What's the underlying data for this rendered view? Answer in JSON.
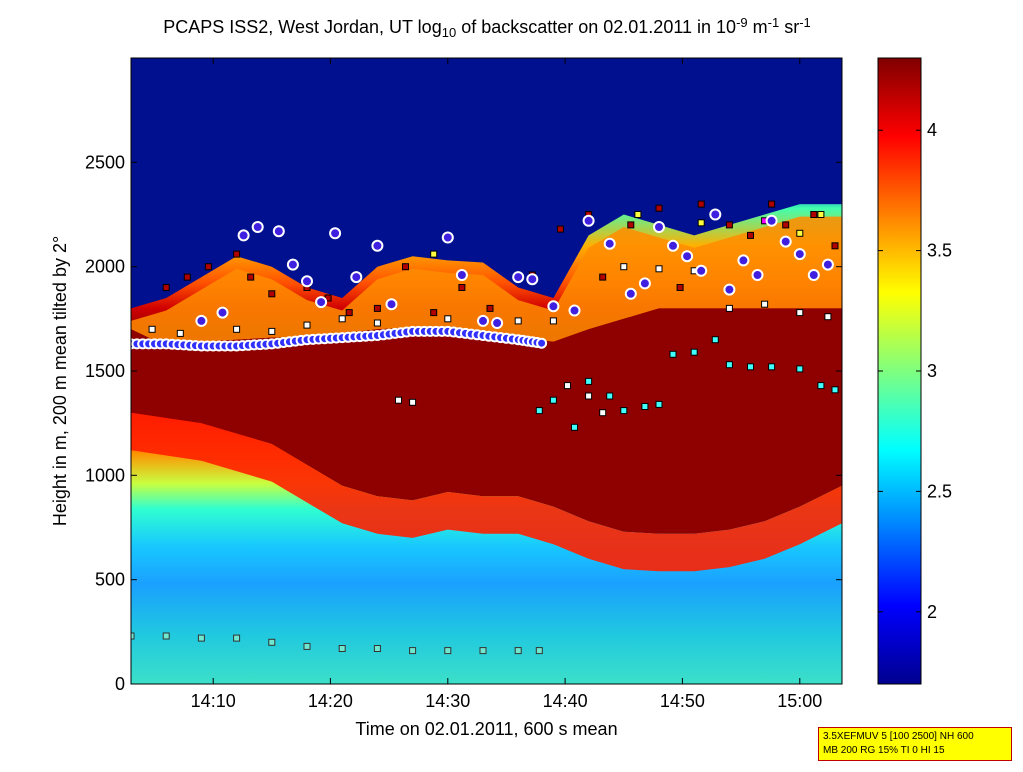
{
  "chart_data": {
    "type": "heatmap",
    "title_parts": [
      "PCAPS ISS2, West Jordan, UT log",
      "10",
      " of backscatter on 02.01.2011 in 10",
      "-9",
      " m",
      "-1",
      " sr",
      "-1"
    ],
    "xlabel": "Time on 02.01.2011, 600 s mean",
    "ylabel": "Height in m, 200 m mean tilted by 2°",
    "xlim": [
      14.05,
      15.06
    ],
    "ylim": [
      0,
      3000
    ],
    "xticks": [
      {
        "value": 14.1667,
        "label": "14:10"
      },
      {
        "value": 14.3333,
        "label": "14:20"
      },
      {
        "value": 14.5,
        "label": "14:30"
      },
      {
        "value": 14.6667,
        "label": "14:40"
      },
      {
        "value": 14.8333,
        "label": "14:50"
      },
      {
        "value": 15.0,
        "label": "15:00"
      }
    ],
    "yticks": [
      0,
      500,
      1000,
      1500,
      2000,
      2500
    ],
    "colorbar": {
      "colormap": "jet",
      "range": [
        1.7,
        4.3
      ],
      "ticks": [
        2,
        2.5,
        3,
        3.5,
        4
      ],
      "tick_labels": [
        "2",
        "2.5",
        "3",
        "3.5",
        "4"
      ]
    },
    "layers": {
      "aerosol_top_time": [
        14.05,
        14.1,
        14.15,
        14.2,
        14.25,
        14.3,
        14.35,
        14.4,
        14.45,
        14.5,
        14.55,
        14.6,
        14.65,
        14.7,
        14.75,
        14.8,
        14.85,
        14.9,
        14.95,
        15.0,
        15.06
      ],
      "aerosol_top_height": [
        1800,
        1850,
        1950,
        2050,
        2000,
        1900,
        1850,
        2000,
        2050,
        2030,
        2020,
        1900,
        1850,
        2150,
        2250,
        2200,
        2150,
        2200,
        2250,
        2300,
        2300
      ],
      "dense_layer_top_height": [
        1700,
        1620,
        1640,
        1650,
        1660,
        1660,
        1680,
        1700,
        1710,
        1700,
        1680,
        1660,
        1640,
        1700,
        1750,
        1800,
        1800,
        1800,
        1800,
        1800,
        1800
      ],
      "dense_layer_bottom_time": [
        14.05,
        14.15,
        14.25,
        14.3,
        14.35,
        14.4,
        14.45,
        14.5,
        14.55,
        14.6,
        14.65,
        14.7,
        14.75,
        14.8,
        14.85,
        14.9,
        14.95,
        15.0,
        15.06
      ],
      "dense_layer_bottom_height": [
        1300,
        1250,
        1150,
        1050,
        950,
        900,
        880,
        920,
        900,
        900,
        850,
        780,
        730,
        720,
        720,
        740,
        780,
        850,
        950
      ]
    },
    "markers": {
      "primary_layer_circles": [
        [
          14.05,
          1630
        ],
        [
          14.1,
          1630
        ],
        [
          14.15,
          1620
        ],
        [
          14.2,
          1620
        ],
        [
          14.25,
          1630
        ],
        [
          14.3,
          1650
        ],
        [
          14.35,
          1660
        ],
        [
          14.4,
          1670
        ],
        [
          14.45,
          1690
        ],
        [
          14.5,
          1690
        ],
        [
          14.55,
          1670
        ],
        [
          14.6,
          1650
        ],
        [
          14.64,
          1630
        ]
      ],
      "upper_circles": [
        [
          14.15,
          1740
        ],
        [
          14.18,
          1780
        ],
        [
          14.21,
          2150
        ],
        [
          14.23,
          2190
        ],
        [
          14.26,
          2170
        ],
        [
          14.28,
          2010
        ],
        [
          14.3,
          1930
        ],
        [
          14.32,
          1830
        ],
        [
          14.34,
          2160
        ],
        [
          14.37,
          1950
        ],
        [
          14.4,
          2100
        ],
        [
          14.42,
          1820
        ],
        [
          14.5,
          2140
        ],
        [
          14.52,
          1960
        ],
        [
          14.55,
          1740
        ],
        [
          14.57,
          1730
        ],
        [
          14.6,
          1950
        ],
        [
          14.62,
          1940
        ],
        [
          14.65,
          1810
        ],
        [
          14.68,
          1790
        ],
        [
          14.7,
          2220
        ],
        [
          14.73,
          2110
        ],
        [
          14.76,
          1870
        ],
        [
          14.78,
          1920
        ],
        [
          14.8,
          2190
        ],
        [
          14.82,
          2100
        ],
        [
          14.84,
          2050
        ],
        [
          14.86,
          1980
        ],
        [
          14.88,
          2250
        ],
        [
          14.9,
          1890
        ],
        [
          14.92,
          2030
        ],
        [
          14.94,
          1960
        ],
        [
          14.96,
          2220
        ],
        [
          14.98,
          2120
        ],
        [
          15.0,
          2060
        ],
        [
          15.02,
          1960
        ],
        [
          15.04,
          2010
        ]
      ],
      "white_squares": [
        [
          14.08,
          1700
        ],
        [
          14.12,
          1680
        ],
        [
          14.2,
          1700
        ],
        [
          14.25,
          1690
        ],
        [
          14.3,
          1720
        ],
        [
          14.35,
          1750
        ],
        [
          14.4,
          1730
        ],
        [
          14.43,
          1360
        ],
        [
          14.45,
          1350
        ],
        [
          14.5,
          1750
        ],
        [
          14.55,
          1740
        ],
        [
          14.6,
          1740
        ],
        [
          14.65,
          1740
        ],
        [
          14.67,
          1430
        ],
        [
          14.7,
          1380
        ],
        [
          14.72,
          1300
        ],
        [
          14.75,
          2000
        ],
        [
          14.8,
          1990
        ],
        [
          14.85,
          1980
        ],
        [
          14.9,
          1800
        ],
        [
          14.95,
          1820
        ],
        [
          15.0,
          1780
        ],
        [
          15.04,
          1760
        ]
      ],
      "cyan_squares": [
        [
          14.63,
          1310
        ],
        [
          14.65,
          1360
        ],
        [
          14.68,
          1230
        ],
        [
          14.7,
          1450
        ],
        [
          14.73,
          1380
        ],
        [
          14.75,
          1310
        ],
        [
          14.78,
          1330
        ],
        [
          14.8,
          1340
        ],
        [
          14.82,
          1580
        ],
        [
          14.85,
          1590
        ],
        [
          14.88,
          1650
        ],
        [
          14.9,
          1530
        ],
        [
          14.93,
          1520
        ],
        [
          14.96,
          1520
        ],
        [
          15.0,
          1510
        ],
        [
          15.03,
          1430
        ],
        [
          15.05,
          1410
        ]
      ],
      "dark_red_squares": [
        [
          14.1,
          1900
        ],
        [
          14.13,
          1950
        ],
        [
          14.16,
          2000
        ],
        [
          14.2,
          2060
        ],
        [
          14.22,
          1950
        ],
        [
          14.25,
          1870
        ],
        [
          14.28,
          2000
        ],
        [
          14.3,
          1900
        ],
        [
          14.33,
          1850
        ],
        [
          14.36,
          1780
        ],
        [
          14.4,
          1800
        ],
        [
          14.44,
          2000
        ],
        [
          14.48,
          1780
        ],
        [
          14.52,
          1900
        ],
        [
          14.56,
          1800
        ],
        [
          14.62,
          1960
        ],
        [
          14.66,
          2180
        ],
        [
          14.7,
          2250
        ],
        [
          14.72,
          1950
        ],
        [
          14.76,
          2200
        ],
        [
          14.8,
          2280
        ],
        [
          14.83,
          1900
        ],
        [
          14.86,
          2300
        ],
        [
          14.9,
          2200
        ],
        [
          14.93,
          2150
        ],
        [
          14.96,
          2300
        ],
        [
          14.98,
          2200
        ],
        [
          15.02,
          2250
        ],
        [
          15.05,
          2100
        ]
      ],
      "yellow_squares": [
        [
          14.48,
          2060
        ],
        [
          14.77,
          2250
        ],
        [
          14.86,
          2210
        ],
        [
          15.0,
          2160
        ],
        [
          15.03,
          2250
        ]
      ],
      "magenta_squares": [
        [
          14.95,
          2220
        ]
      ],
      "ground_level_squares": [
        [
          14.05,
          230
        ],
        [
          14.1,
          230
        ],
        [
          14.15,
          220
        ],
        [
          14.2,
          220
        ],
        [
          14.25,
          200
        ],
        [
          14.3,
          180
        ],
        [
          14.35,
          170
        ],
        [
          14.4,
          170
        ],
        [
          14.45,
          160
        ],
        [
          14.5,
          160
        ],
        [
          14.55,
          160
        ],
        [
          14.6,
          160
        ],
        [
          14.63,
          160
        ]
      ]
    }
  },
  "info_box": {
    "line1": "3.5XEFMUV 5 [100 2500] NH 600",
    "line2": "MB 200 RG 15% TI 0 HI 15"
  }
}
